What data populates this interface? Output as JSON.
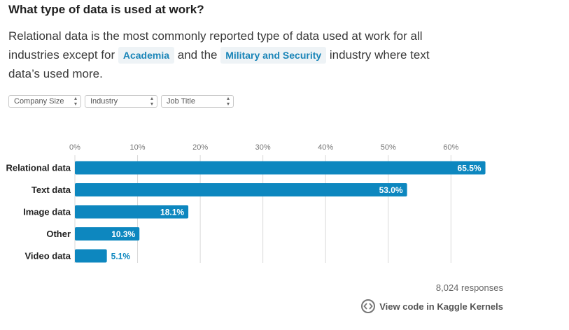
{
  "header": {
    "title": "What type of data is used at work?",
    "subtitle_part1": "Relational data is the most commonly reported type of data used at work for all industries except for",
    "pill1": "Academia",
    "subtitle_part2": "and the",
    "pill2": "Military and Security",
    "subtitle_part3": "industry where text data’s used more."
  },
  "filters": [
    {
      "label": "Company Size"
    },
    {
      "label": "Industry"
    },
    {
      "label": "Job Title"
    }
  ],
  "colors": {
    "bar": "#0d87bf",
    "label_inside": "#ffffff",
    "label_outside": "#0d87bf",
    "grid": "#d9d9d9"
  },
  "chart_data": {
    "type": "bar",
    "orientation": "horizontal",
    "categories": [
      "Relational data",
      "Text data",
      "Image data",
      "Other",
      "Video data"
    ],
    "values": [
      65.5,
      53.0,
      18.1,
      10.3,
      5.1
    ],
    "value_labels": [
      "65.5%",
      "53.0%",
      "18.1%",
      "10.3%",
      "5.1%"
    ],
    "xticks": [
      "0%",
      "10%",
      "20%",
      "30%",
      "40%",
      "50%",
      "60%"
    ],
    "xtick_values": [
      0,
      10,
      20,
      30,
      40,
      50,
      60
    ],
    "xlim": [
      0,
      70
    ],
    "grid": true,
    "axis_position": "top"
  },
  "footer": {
    "responses": "8,024 responses",
    "kaggle_link": "View code in Kaggle Kernels"
  }
}
